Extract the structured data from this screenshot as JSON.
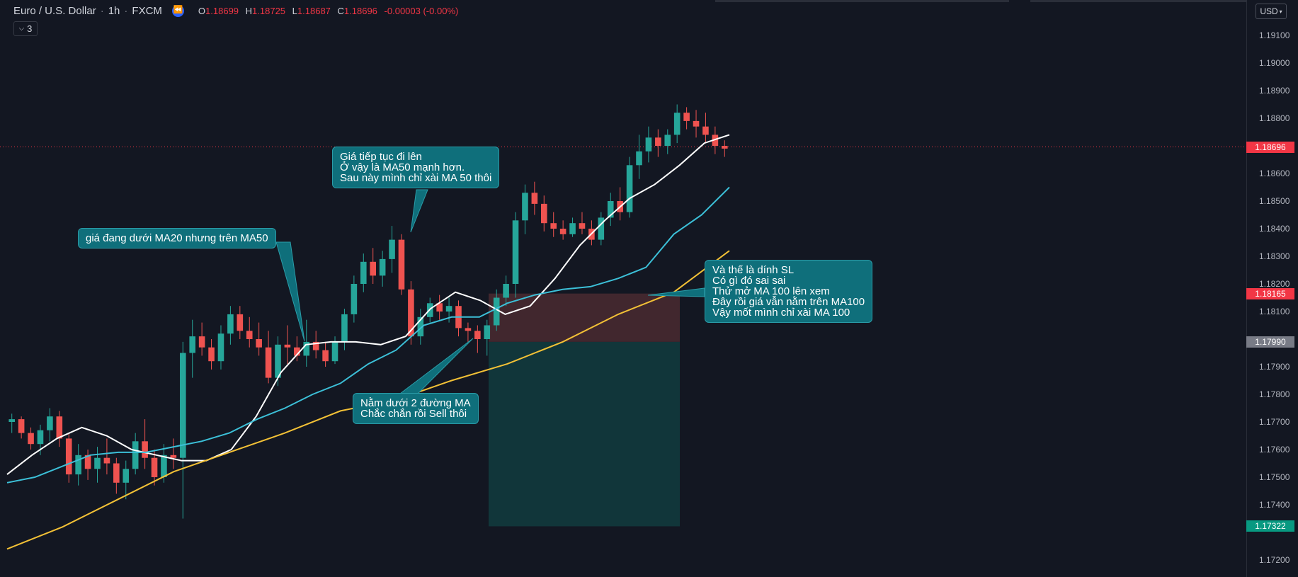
{
  "header": {
    "symbol": "Euro / U.S. Dollar",
    "interval": "1h",
    "exchange": "FXCM",
    "ohlc": {
      "o_label": "O",
      "o": "1.18699",
      "h_label": "H",
      "h": "1.18725",
      "l_label": "L",
      "l": "1.18687",
      "c_label": "C",
      "c": "1.18696",
      "change": "-0.00003 (-0.00%)"
    },
    "indicators_count": "3"
  },
  "price_axis": {
    "currency": "USD",
    "ticks": [
      "1.19100",
      "1.19000",
      "1.18900",
      "1.18800",
      "1.18600",
      "1.18500",
      "1.18400",
      "1.18300",
      "1.18200",
      "1.18100",
      "1.17900",
      "1.17800",
      "1.17700",
      "1.17600",
      "1.17500",
      "1.17400",
      "1.17200"
    ],
    "labels": [
      {
        "text": "1.18696",
        "value": 1.18696,
        "color": "#f23645"
      },
      {
        "text": "1.18165",
        "value": 1.18165,
        "color": "#f23645"
      },
      {
        "text": "1.17990",
        "value": 1.1799,
        "color": "#787b86"
      },
      {
        "text": "1.17322",
        "value": 1.17322,
        "color": "#089981"
      }
    ]
  },
  "colors": {
    "up": "#26a69a",
    "down": "#ef5350",
    "ma20": "#ffffff",
    "ma50": "#3cc0d8",
    "ma100": "#f3c136",
    "stop_zone": "#4a2a30",
    "target_zone": "#123a3d",
    "bg": "#131722"
  },
  "annotations": [
    {
      "text": "giá đang dưới MA20 nhưng trên MA50"
    },
    {
      "text": "Giá tiếp tục đi lên\nỞ vậy là MA50 mạnh hơn.\nSau này mình chỉ xài MA 50 thôi"
    },
    {
      "text": "Nằm dưới 2 đường MA\nChắc chắn rồi Sell thôi"
    },
    {
      "text": "Và thế là dính SL\nCó gì đó sai sai\nThử mở MA 100 lên xem\nĐây rồi giá vẫn nằm trên MA100\nVậy mốt mình chỉ xài MA 100"
    }
  ],
  "chart_data": {
    "type": "candlestick",
    "ylim": [
      1.1716,
      1.1921
    ],
    "last_price": 1.18696,
    "position": {
      "side": "short",
      "entry": 1.1799,
      "stop": 1.18165,
      "target": 1.17322
    },
    "series": [
      {
        "name": "MA20",
        "color": "#ffffff",
        "values": [
          1.1751,
          1.1758,
          1.1764,
          1.1768,
          1.1765,
          1.176,
          1.1758,
          1.1756,
          1.1756,
          1.176,
          1.1772,
          1.1788,
          1.1798,
          1.1799,
          1.1799,
          1.1798,
          1.1801,
          1.1811,
          1.1817,
          1.1814,
          1.1809,
          1.1812,
          1.1822,
          1.1834,
          1.1843,
          1.1851,
          1.1856,
          1.1863,
          1.1871,
          1.1874
        ]
      },
      {
        "name": "MA50",
        "color": "#3cc0d8",
        "values": [
          1.1748,
          1.175,
          1.1754,
          1.1758,
          1.1759,
          1.1759,
          1.1761,
          1.1763,
          1.1766,
          1.1771,
          1.1775,
          1.178,
          1.1784,
          1.1791,
          1.1796,
          1.1805,
          1.1808,
          1.1808,
          1.1813,
          1.1816,
          1.1818,
          1.1819,
          1.1822,
          1.1826,
          1.1838,
          1.1845,
          1.1855
        ]
      },
      {
        "name": "MA100",
        "color": "#f3c136",
        "values": [
          1.1724,
          1.1732,
          1.1742,
          1.1752,
          1.1759,
          1.1766,
          1.1774,
          1.1778,
          1.1785,
          1.1791,
          1.1799,
          1.1809,
          1.1817,
          1.1832
        ]
      }
    ],
    "candles": [
      [
        1.177,
        1.1773,
        1.1766,
        1.1771
      ],
      [
        1.1771,
        1.1772,
        1.1764,
        1.1766
      ],
      [
        1.1766,
        1.1768,
        1.176,
        1.1762
      ],
      [
        1.1762,
        1.1769,
        1.1758,
        1.1767
      ],
      [
        1.1767,
        1.1775,
        1.1763,
        1.1772
      ],
      [
        1.1772,
        1.1774,
        1.1761,
        1.1764
      ],
      [
        1.1764,
        1.1766,
        1.1748,
        1.1751
      ],
      [
        1.1751,
        1.1762,
        1.1747,
        1.1758
      ],
      [
        1.1758,
        1.176,
        1.1749,
        1.1753
      ],
      [
        1.1753,
        1.1761,
        1.1748,
        1.1757
      ],
      [
        1.1757,
        1.1764,
        1.1751,
        1.1755
      ],
      [
        1.1755,
        1.1757,
        1.1744,
        1.1748
      ],
      [
        1.1748,
        1.1756,
        1.1742,
        1.1753
      ],
      [
        1.1753,
        1.1766,
        1.1751,
        1.1763
      ],
      [
        1.1763,
        1.1771,
        1.1753,
        1.1757
      ],
      [
        1.1757,
        1.176,
        1.1747,
        1.175
      ],
      [
        1.175,
        1.1762,
        1.1748,
        1.1758
      ],
      [
        1.1758,
        1.1764,
        1.1753,
        1.1757
      ],
      [
        1.1757,
        1.1799,
        1.1735,
        1.1795
      ],
      [
        1.1795,
        1.1807,
        1.1786,
        1.1801
      ],
      [
        1.1801,
        1.1806,
        1.1794,
        1.1797
      ],
      [
        1.1797,
        1.18,
        1.1789,
        1.1792
      ],
      [
        1.1792,
        1.1805,
        1.1789,
        1.1802
      ],
      [
        1.1802,
        1.1812,
        1.1798,
        1.1809
      ],
      [
        1.1809,
        1.1812,
        1.18,
        1.1803
      ],
      [
        1.1803,
        1.1808,
        1.1797,
        1.18
      ],
      [
        1.18,
        1.1806,
        1.1794,
        1.1797
      ],
      [
        1.1797,
        1.1803,
        1.1784,
        1.1786
      ],
      [
        1.1786,
        1.1801,
        1.1783,
        1.1798
      ],
      [
        1.1798,
        1.1805,
        1.1791,
        1.1797
      ],
      [
        1.1797,
        1.1801,
        1.1792,
        1.1794
      ],
      [
        1.1794,
        1.1807,
        1.179,
        1.1799
      ],
      [
        1.1799,
        1.1803,
        1.1793,
        1.1796
      ],
      [
        1.1796,
        1.1799,
        1.179,
        1.1792
      ],
      [
        1.1792,
        1.1801,
        1.1791,
        1.1799
      ],
      [
        1.1799,
        1.1811,
        1.1796,
        1.1809
      ],
      [
        1.1809,
        1.1823,
        1.1806,
        1.182
      ],
      [
        1.182,
        1.1831,
        1.1817,
        1.1828
      ],
      [
        1.1828,
        1.1833,
        1.182,
        1.1823
      ],
      [
        1.1823,
        1.1832,
        1.1819,
        1.1829
      ],
      [
        1.1829,
        1.1841,
        1.1824,
        1.1836
      ],
      [
        1.1836,
        1.1838,
        1.1816,
        1.1818
      ],
      [
        1.1818,
        1.1821,
        1.1798,
        1.1801
      ],
      [
        1.1801,
        1.1811,
        1.1798,
        1.1808
      ],
      [
        1.1808,
        1.1815,
        1.1806,
        1.1813
      ],
      [
        1.1813,
        1.1816,
        1.1807,
        1.181
      ],
      [
        1.181,
        1.1815,
        1.1806,
        1.1812
      ],
      [
        1.1812,
        1.1814,
        1.1801,
        1.1804
      ],
      [
        1.1804,
        1.1806,
        1.1799,
        1.1803
      ],
      [
        1.1803,
        1.1805,
        1.1795,
        1.18
      ],
      [
        1.18,
        1.1807,
        1.1794,
        1.1805
      ],
      [
        1.1805,
        1.1818,
        1.1803,
        1.1815
      ],
      [
        1.1815,
        1.1823,
        1.1812,
        1.182
      ],
      [
        1.182,
        1.1846,
        1.1815,
        1.1843
      ],
      [
        1.1843,
        1.1856,
        1.1838,
        1.1853
      ],
      [
        1.1853,
        1.1857,
        1.1845,
        1.1849
      ],
      [
        1.1849,
        1.1852,
        1.1839,
        1.1842
      ],
      [
        1.1842,
        1.1846,
        1.1837,
        1.184
      ],
      [
        1.184,
        1.1843,
        1.1836,
        1.1838
      ],
      [
        1.1838,
        1.1844,
        1.1837,
        1.1842
      ],
      [
        1.1842,
        1.1846,
        1.1838,
        1.184
      ],
      [
        1.184,
        1.1843,
        1.1834,
        1.1836
      ],
      [
        1.1836,
        1.1846,
        1.1834,
        1.1844
      ],
      [
        1.1844,
        1.1853,
        1.1841,
        1.185
      ],
      [
        1.185,
        1.1855,
        1.1843,
        1.1846
      ],
      [
        1.1846,
        1.1866,
        1.1844,
        1.1863
      ],
      [
        1.1863,
        1.1874,
        1.1858,
        1.1868
      ],
      [
        1.1868,
        1.1877,
        1.1864,
        1.1873
      ],
      [
        1.1873,
        1.1876,
        1.1866,
        1.187
      ],
      [
        1.187,
        1.1876,
        1.1867,
        1.1874
      ],
      [
        1.1874,
        1.1885,
        1.1871,
        1.1882
      ],
      [
        1.1882,
        1.1884,
        1.1876,
        1.1879
      ],
      [
        1.1879,
        1.1883,
        1.1873,
        1.1877
      ],
      [
        1.1877,
        1.1882,
        1.1871,
        1.1874
      ],
      [
        1.1874,
        1.1877,
        1.1867,
        1.187
      ],
      [
        1.187,
        1.1872,
        1.1866,
        1.1869
      ]
    ]
  }
}
